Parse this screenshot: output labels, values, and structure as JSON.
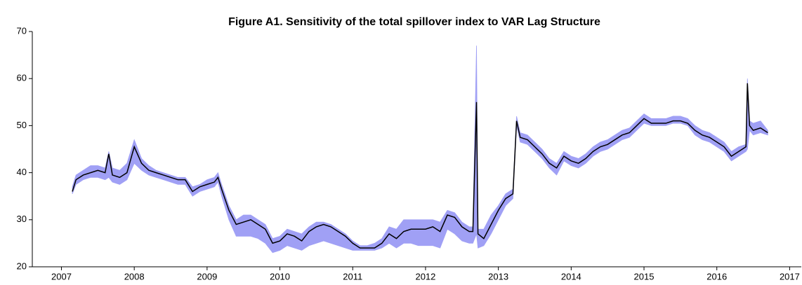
{
  "chart_data": {
    "type": "line",
    "title": "Figure A1. Sensitivity of the total spillover index to VAR Lag Structure",
    "x": [
      2007.15,
      2007.2,
      2007.3,
      2007.4,
      2007.5,
      2007.6,
      2007.65,
      2007.7,
      2007.8,
      2007.9,
      2008.0,
      2008.1,
      2008.2,
      2008.3,
      2008.4,
      2008.5,
      2008.6,
      2008.7,
      2008.8,
      2008.9,
      2009.0,
      2009.1,
      2009.15,
      2009.2,
      2009.3,
      2009.4,
      2009.5,
      2009.6,
      2009.7,
      2009.8,
      2009.9,
      2010.0,
      2010.1,
      2010.2,
      2010.3,
      2010.4,
      2010.5,
      2010.6,
      2010.7,
      2010.8,
      2010.9,
      2011.0,
      2011.1,
      2011.2,
      2011.3,
      2011.4,
      2011.5,
      2011.6,
      2011.7,
      2011.8,
      2011.9,
      2012.0,
      2012.1,
      2012.2,
      2012.3,
      2012.4,
      2012.5,
      2012.6,
      2012.65,
      2012.7,
      2012.72,
      2012.8,
      2012.9,
      2013.0,
      2013.1,
      2013.2,
      2013.25,
      2013.3,
      2013.4,
      2013.5,
      2013.6,
      2013.7,
      2013.8,
      2013.9,
      2014.0,
      2014.1,
      2014.2,
      2014.3,
      2014.4,
      2014.5,
      2014.6,
      2014.7,
      2014.8,
      2014.9,
      2015.0,
      2015.1,
      2015.2,
      2015.3,
      2015.4,
      2015.5,
      2015.6,
      2015.7,
      2015.8,
      2015.9,
      2016.0,
      2016.1,
      2016.2,
      2016.3,
      2016.4,
      2016.42,
      2016.45,
      2016.5,
      2016.6,
      2016.7
    ],
    "line": {
      "color": "#000000",
      "values": [
        36,
        38.5,
        39.5,
        40,
        40.5,
        40,
        44,
        39.5,
        39,
        40,
        45.5,
        42,
        40.5,
        40,
        39.5,
        39,
        38.5,
        38.5,
        36,
        37,
        37.5,
        38,
        39,
        36.5,
        32,
        29,
        29.5,
        30,
        29,
        28,
        25,
        25.5,
        27,
        26.5,
        25.5,
        27.5,
        28.5,
        29,
        28.5,
        27.5,
        26.5,
        25,
        24,
        24,
        24,
        25,
        27,
        26,
        27.5,
        28,
        28,
        28,
        28.5,
        27.5,
        31,
        30.5,
        28.5,
        27.5,
        27.5,
        55,
        27,
        26,
        29,
        32,
        34.5,
        35.5,
        51,
        47.5,
        47,
        45.5,
        44,
        42,
        41,
        43.5,
        42.5,
        42,
        43,
        44.5,
        45.5,
        46,
        47,
        48,
        48.5,
        50,
        51.5,
        50.5,
        50.5,
        50.5,
        51,
        51,
        50.5,
        49,
        48,
        47.5,
        46.5,
        45.5,
        43.5,
        44.5,
        45.5,
        59,
        50,
        49,
        49.5,
        48.5
      ]
    },
    "band": {
      "color": "#a0a0f5",
      "lower": [
        35.5,
        37.5,
        38.5,
        39,
        39,
        38.5,
        39,
        38,
        37.5,
        38.5,
        42,
        40.5,
        39.5,
        39,
        38.5,
        38,
        37.5,
        37.5,
        35,
        36,
        36.5,
        37,
        38,
        35,
        30,
        26.5,
        26.5,
        26.5,
        26,
        25,
        23,
        23.5,
        24.5,
        24,
        23.5,
        24.5,
        25,
        25.5,
        25,
        24.5,
        24,
        23.5,
        23.5,
        23.5,
        23.5,
        24,
        25,
        24,
        25,
        25,
        24.5,
        24.5,
        24.5,
        24,
        28,
        27,
        25.5,
        25,
        25,
        27,
        24,
        24.5,
        27,
        30,
        33,
        34.5,
        50,
        46.5,
        46,
        44.5,
        43,
        41,
        39.5,
        42.5,
        41.5,
        41,
        42,
        43.5,
        44.5,
        45,
        46,
        47,
        47.5,
        49,
        50.5,
        50,
        50,
        50,
        50.5,
        50.5,
        50,
        48,
        47,
        46.5,
        45.5,
        44.5,
        42.5,
        43.5,
        44.5,
        45,
        49,
        48,
        48.5,
        48
      ],
      "upper": [
        37,
        39.5,
        40.5,
        41.5,
        41.5,
        41,
        44.5,
        41,
        40.5,
        42,
        47,
        43,
        41.5,
        40.5,
        40,
        39.5,
        39,
        39,
        37,
        37.5,
        38.5,
        39,
        40,
        37.5,
        33,
        30,
        31,
        31,
        30,
        29,
        26,
        26.5,
        28,
        27.5,
        27,
        28.5,
        29.5,
        29.5,
        29,
        28,
        27,
        25.5,
        24.5,
        24.5,
        25,
        26,
        28.5,
        28,
        30,
        30,
        30,
        30,
        30,
        29.5,
        32,
        31.5,
        29.5,
        28.5,
        28.5,
        67,
        28,
        28,
        31,
        33,
        35.5,
        36.5,
        52,
        48.5,
        48,
        46.5,
        45,
        43,
        42,
        44.5,
        43.5,
        43,
        44,
        45.5,
        46.5,
        47,
        48,
        49,
        49.5,
        51,
        52.5,
        51.5,
        51.5,
        51.5,
        52,
        52,
        51.5,
        50,
        49,
        48.5,
        47.5,
        46.5,
        44.5,
        45.5,
        46,
        60,
        51,
        50.5,
        51,
        49
      ]
    },
    "xlim": [
      2006.6,
      2017.16
    ],
    "xticks": [
      2007,
      2008,
      2009,
      2010,
      2011,
      2012,
      2013,
      2014,
      2015,
      2016,
      2017
    ],
    "ylim": [
      20,
      70
    ],
    "yticks": [
      20,
      30,
      40,
      50,
      60,
      70
    ]
  }
}
